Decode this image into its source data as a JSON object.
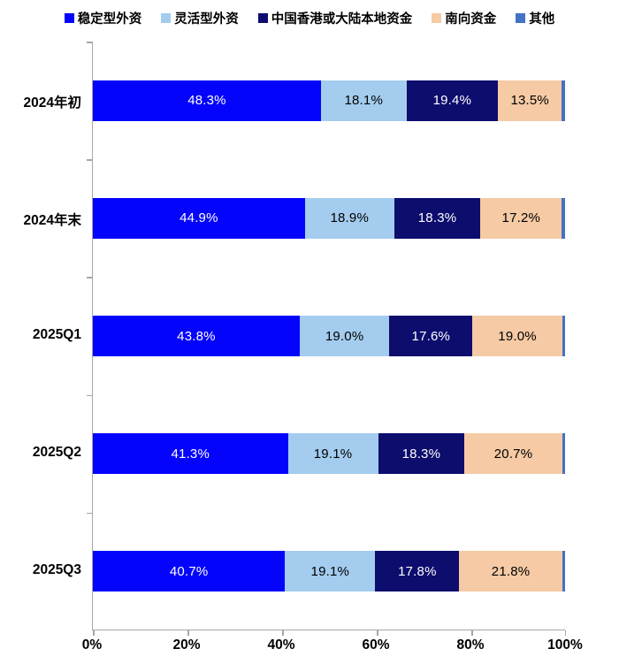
{
  "chart_data": {
    "type": "bar",
    "orientation": "horizontal",
    "stacked": true,
    "title": "",
    "xlabel": "",
    "ylabel": "",
    "xlim": [
      0,
      100
    ],
    "grid": false,
    "legend_position": "top",
    "categories": [
      "2024年初",
      "2024年末",
      "2025Q1",
      "2025Q2",
      "2025Q3"
    ],
    "series": [
      {
        "name": "稳定型外资",
        "color": "#0404fc",
        "label_color": "#ffffff",
        "show_labels": true,
        "values": [
          48.3,
          44.9,
          43.8,
          41.3,
          40.7
        ]
      },
      {
        "name": "灵活型外资",
        "color": "#a3ccee",
        "label_color": "#000000",
        "show_labels": true,
        "values": [
          18.1,
          18.9,
          19.0,
          19.1,
          19.1
        ]
      },
      {
        "name": "中国香港或大陆本地资金",
        "color": "#0d0d6e",
        "label_color": "#ffffff",
        "show_labels": true,
        "values": [
          19.4,
          18.3,
          17.6,
          18.3,
          17.8
        ]
      },
      {
        "name": "南向资金",
        "color": "#f5caa4",
        "label_color": "#000000",
        "show_labels": true,
        "values": [
          13.5,
          17.2,
          19.0,
          20.7,
          21.8
        ]
      },
      {
        "name": "其他",
        "color": "#4472c4",
        "label_color": "#000000",
        "show_labels": false,
        "values": [
          0.7,
          0.7,
          0.6,
          0.6,
          0.6
        ]
      }
    ],
    "x_ticks": [
      "0%",
      "20%",
      "40%",
      "60%",
      "80%",
      "100%"
    ],
    "value_label_suffix": "%",
    "axis_color": "#a6a6a6"
  }
}
